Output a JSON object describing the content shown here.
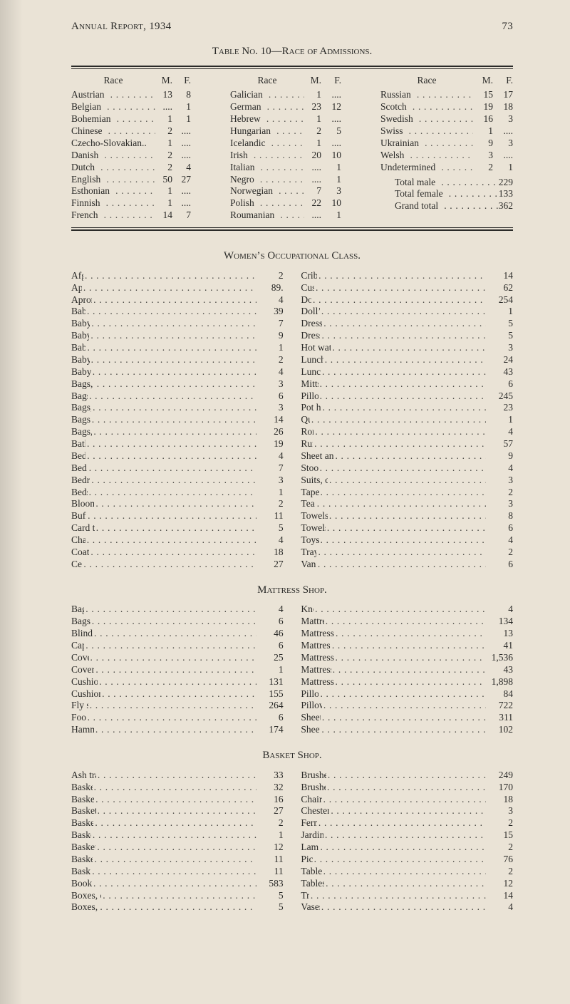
{
  "page_header": {
    "title": "Annual Report, 1934",
    "page_number": "73"
  },
  "race_table": {
    "title": "Table No. 10—Race of Admissions.",
    "column_headers": {
      "race": "Race",
      "m": "M.",
      "f": "F."
    },
    "columns": [
      {
        "rows": [
          {
            "name": "Austrian",
            "m": "13",
            "f": "8"
          },
          {
            "name": "Belgian",
            "m": "....",
            "f": "1"
          },
          {
            "name": "Bohemian",
            "m": "1",
            "f": "1"
          },
          {
            "name": "Chinese",
            "m": "2",
            "f": "...."
          },
          {
            "name": "Czecho-Slovakian..",
            "m": "1",
            "f": "....",
            "no_dots": true
          },
          {
            "name": "Danish",
            "m": "2",
            "f": "...."
          },
          {
            "name": "Dutch",
            "m": "2",
            "f": "4"
          },
          {
            "name": "English",
            "m": "50",
            "f": "27"
          },
          {
            "name": "Esthonian",
            "m": "1",
            "f": "...."
          },
          {
            "name": "Finnish",
            "m": "1",
            "f": "...."
          },
          {
            "name": "French",
            "m": "14",
            "f": "7"
          }
        ]
      },
      {
        "rows": [
          {
            "name": "Galician",
            "m": "1",
            "f": "...."
          },
          {
            "name": "German",
            "m": "23",
            "f": "12"
          },
          {
            "name": "Hebrew",
            "m": "1",
            "f": "...."
          },
          {
            "name": "Hungarian",
            "m": "2",
            "f": "5"
          },
          {
            "name": "Icelandic",
            "m": "1",
            "f": "...."
          },
          {
            "name": "Irish",
            "m": "20",
            "f": "10"
          },
          {
            "name": "Italian",
            "m": "....",
            "f": "1"
          },
          {
            "name": "Negro",
            "m": "....",
            "f": "1"
          },
          {
            "name": "Norwegian",
            "m": "7",
            "f": "3"
          },
          {
            "name": "Polish",
            "m": "22",
            "f": "10"
          },
          {
            "name": "Roumanian",
            "m": "....",
            "f": "1"
          }
        ]
      },
      {
        "rows": [
          {
            "name": "Russian",
            "m": "15",
            "f": "17"
          },
          {
            "name": "Scotch",
            "m": "19",
            "f": "18"
          },
          {
            "name": "Swedish",
            "m": "16",
            "f": "3"
          },
          {
            "name": "Swiss",
            "m": "1",
            "f": "...."
          },
          {
            "name": "Ukrainian",
            "m": "9",
            "f": "3"
          },
          {
            "name": "Welsh",
            "m": "3",
            "f": "...."
          },
          {
            "name": "Undetermined",
            "m": "2",
            "f": "1"
          }
        ],
        "totals": [
          {
            "label": "Total male",
            "value": "229"
          },
          {
            "label": "Total female",
            "value": "133"
          },
          {
            "label": "Grand total",
            "value": "362"
          }
        ]
      }
    ]
  },
  "occupational": {
    "title": "Women’s Occupational Class.",
    "left": [
      {
        "label": "Afghans",
        "value": "2"
      },
      {
        "label": "Aprons",
        "value": "89."
      },
      {
        "label": "Aprons, child’s",
        "value": "4"
      },
      {
        "label": "Baby bibs",
        "value": "39"
      },
      {
        "label": "Baby bonnets",
        "value": "7"
      },
      {
        "label": "Baby booties",
        "value": "9"
      },
      {
        "label": "Baby caps",
        "value": "1"
      },
      {
        "label": "Baby pillows",
        "value": "2"
      },
      {
        "label": "Baby sweaters",
        "value": "4"
      },
      {
        "label": "Bags, clothes pins",
        "value": "3"
      },
      {
        "label": "Bags, shoes",
        "value": "6"
      },
      {
        "label": "Bags, stocking",
        "value": "3"
      },
      {
        "label": "Bags, laundry",
        "value": "14"
      },
      {
        "label": "Bags, shopping",
        "value": "26"
      },
      {
        "label": "Bath mats",
        "value": "19"
      },
      {
        "label": "Bed socks",
        "value": "4"
      },
      {
        "label": "Bed jackets",
        "value": "7"
      },
      {
        "label": "Bedroom sets",
        "value": "3"
      },
      {
        "label": "Bedspreads",
        "value": "1"
      },
      {
        "label": "Bloomers—wool",
        "value": "2"
      },
      {
        "label": "Buffet sets",
        "value": "11"
      },
      {
        "label": "Card table covers",
        "value": "5"
      },
      {
        "label": "Chair sets",
        "value": "4"
      },
      {
        "label": "Coat hangers",
        "value": "18"
      },
      {
        "label": "Centres",
        "value": "27"
      }
    ],
    "right": [
      {
        "label": "Crib covers",
        "value": "14"
      },
      {
        "label": "Cushions",
        "value": "62"
      },
      {
        "label": "Doilies",
        "value": "254"
      },
      {
        "label": "Doll’s bed set",
        "value": "1"
      },
      {
        "label": "Dresses, child’s",
        "value": "5"
      },
      {
        "label": "Dresser scarfs",
        "value": "5"
      },
      {
        "label": "Hot water bottle covers",
        "value": "3"
      },
      {
        "label": "Luncheon cloths",
        "value": "24"
      },
      {
        "label": "Luncheon sets",
        "value": "43"
      },
      {
        "label": "Mitts (pairs)",
        "value": "6"
      },
      {
        "label": "Pillow cases",
        "value": "245"
      },
      {
        "label": "Pot holder sets",
        "value": "23"
      },
      {
        "label": "Quilts",
        "value": "1"
      },
      {
        "label": "Rompers",
        "value": "4"
      },
      {
        "label": "Runners",
        "value": "57"
      },
      {
        "label": "Sheet and pillow case sets",
        "value": "9"
      },
      {
        "label": "Stool covers",
        "value": "4"
      },
      {
        "label": "Suits, child’s knitted",
        "value": "3"
      },
      {
        "label": "Tapestry sets",
        "value": "2"
      },
      {
        "label": "Tea cosies",
        "value": "3"
      },
      {
        "label": "Towels, hand (pairs)",
        "value": "8"
      },
      {
        "label": "Towels, tea (pairs)",
        "value": "6"
      },
      {
        "label": "Toys, stuffed",
        "value": "4"
      },
      {
        "label": "Tray cloths",
        "value": "2"
      },
      {
        "label": "Vanity sets",
        "value": "6"
      }
    ]
  },
  "mattress": {
    "title": "Mattress Shop.",
    "left": [
      {
        "label": "Bags, ice",
        "value": "4"
      },
      {
        "label": "Bags, laundry",
        "value": "6"
      },
      {
        "label": "Blinds, window",
        "value": "46"
      },
      {
        "label": "Caps, ice",
        "value": "6"
      },
      {
        "label": "Covers, bath",
        "value": "25"
      },
      {
        "label": "Covers, extractor",
        "value": "1"
      },
      {
        "label": "Cushion forms, new",
        "value": "131"
      },
      {
        "label": "Cushion forms remade",
        "value": "155"
      },
      {
        "label": "Fly swatters",
        "value": "264"
      },
      {
        "label": "Footstools",
        "value": "6"
      },
      {
        "label": "Hammocks, bath",
        "value": "174"
      }
    ],
    "right": [
      {
        "label": "Kneelers",
        "value": "4"
      },
      {
        "label": "Mattresses, cases",
        "value": "134"
      },
      {
        "label": "Mattresses, remade—pack",
        "value": "13"
      },
      {
        "label": "Mattresses, new strong",
        "value": "41"
      },
      {
        "label": "Mattresses remade, strong",
        "value": "1,536"
      },
      {
        "label": "Mattresses, new—wool",
        "value": "43"
      },
      {
        "label": "Mattresses remade—wool",
        "value": "1,898"
      },
      {
        "label": "Pillows, new",
        "value": "84"
      },
      {
        "label": "Pillows remade",
        "value": "722"
      },
      {
        "label": "Sheets, rubber",
        "value": "311"
      },
      {
        "label": "Sheets, strong",
        "value": "102"
      }
    ]
  },
  "basket": {
    "title": "Basket Shop.",
    "left": [
      {
        "label": "Ash trays—copper",
        "value": "33"
      },
      {
        "label": "Baskets, flower",
        "value": "32"
      },
      {
        "label": "Baskets, hanging",
        "value": "16"
      },
      {
        "label": "Baskets, jardiniere",
        "value": "27"
      },
      {
        "label": "Baskets, laundry",
        "value": "2"
      },
      {
        "label": "Baskets, lunch",
        "value": "1"
      },
      {
        "label": "Baskets, sandwich",
        "value": "12"
      },
      {
        "label": "Baskets, sewing",
        "value": "11"
      },
      {
        "label": "Baskets, work",
        "value": "11"
      },
      {
        "label": "Books repaired",
        "value": "583"
      },
      {
        "label": "Boxes, copper cigarette",
        "value": "5"
      },
      {
        "label": "Boxes, copper match",
        "value": "5"
      }
    ],
    "right": [
      {
        "label": "Brushes, scrubbing",
        "value": "249"
      },
      {
        "label": "Brushes, polishing",
        "value": "170"
      },
      {
        "label": "Chairs repaired",
        "value": "18"
      },
      {
        "label": "Chesterfields repaired",
        "value": "3"
      },
      {
        "label": "Fern stands",
        "value": "2"
      },
      {
        "label": "Jardiniere stands",
        "value": "15"
      },
      {
        "label": "Lamps, table",
        "value": "2"
      },
      {
        "label": "Pictures",
        "value": "76"
      },
      {
        "label": "Tables—nested",
        "value": "2"
      },
      {
        "label": "Tables, telephone",
        "value": "12"
      },
      {
        "label": "Trays",
        "value": "14"
      },
      {
        "label": "Vases, copper",
        "value": "4"
      }
    ]
  }
}
